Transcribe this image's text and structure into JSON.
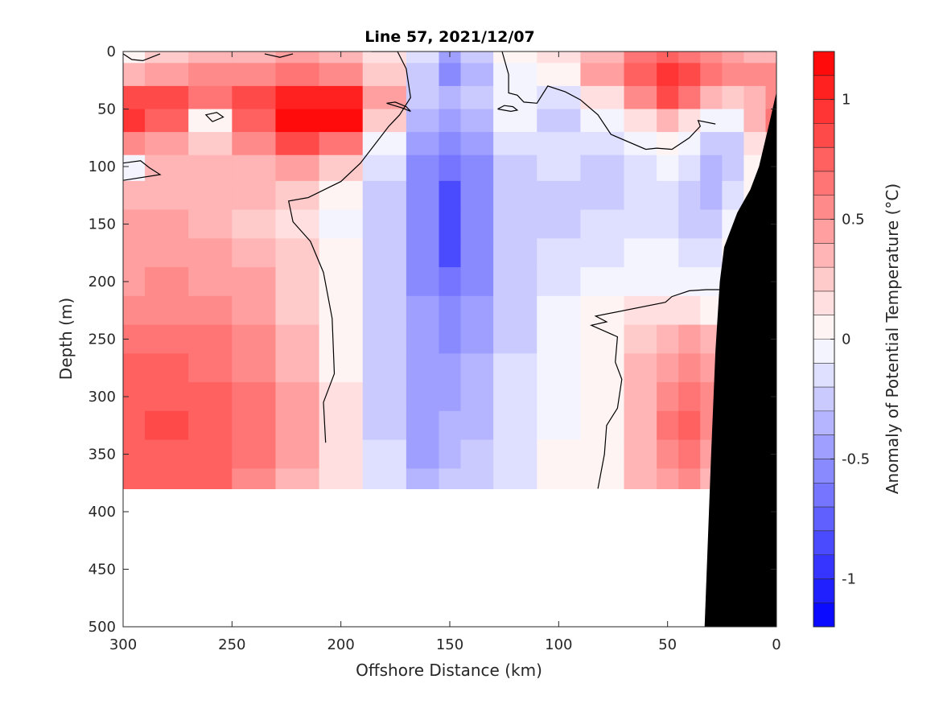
{
  "chart_data": {
    "type": "heatmap",
    "title": "Line 57, 2021/12/07",
    "xlabel": "Offshore Distance (km)",
    "ylabel": "Depth (m)",
    "colorbar_label": "Anomaly of Potential Temperature (°C)",
    "xlim": [
      300,
      0
    ],
    "x_reversed": true,
    "ylim": [
      0,
      500
    ],
    "y_reversed": true,
    "x_ticks": [
      300,
      250,
      200,
      150,
      100,
      50,
      0
    ],
    "y_ticks": [
      0,
      50,
      100,
      150,
      200,
      250,
      300,
      350,
      400,
      450,
      500
    ],
    "clim": [
      -1.2,
      1.2
    ],
    "color_levels": 24,
    "colorbar_ticks": [
      1,
      0.5,
      0,
      -0.5,
      -1
    ],
    "colorbar_tick_labels": [
      "1",
      "0.5",
      "0",
      "-0.5",
      "-1"
    ],
    "colors": {
      "positive": "#ff0000",
      "negative": "#0000ff",
      "neutral": "#ffffff",
      "bathymetry": "#000000",
      "contour": "#000000"
    },
    "grid": false,
    "data_bottom_depth": 380,
    "x_km": [
      300,
      280,
      260,
      240,
      220,
      200,
      180,
      160,
      150,
      140,
      120,
      100,
      80,
      60,
      50,
      40,
      30,
      20,
      10,
      0
    ],
    "depth_m": [
      0,
      20,
      40,
      60,
      80,
      100,
      125,
      150,
      175,
      200,
      225,
      250,
      275,
      300,
      325,
      350,
      375
    ],
    "anomaly_degC": [
      [
        0.0,
        0.2,
        0.3,
        0.3,
        0.4,
        0.3,
        0.1,
        -0.2,
        -0.5,
        -0.3,
        0.0,
        0.1,
        0.3,
        0.6,
        0.7,
        0.6,
        0.5,
        0.4,
        0.3,
        0.3
      ],
      [
        0.3,
        0.4,
        0.5,
        0.5,
        0.6,
        0.5,
        0.2,
        -0.3,
        -0.6,
        -0.4,
        -0.1,
        0.0,
        0.4,
        0.7,
        0.9,
        0.8,
        0.6,
        0.5,
        0.5,
        0.5
      ],
      [
        0.8,
        0.8,
        0.6,
        0.8,
        1.0,
        1.0,
        0.4,
        -0.3,
        -0.4,
        -0.3,
        -0.1,
        -0.2,
        0.1,
        0.5,
        0.8,
        0.6,
        0.3,
        0.2,
        0.3,
        0.5
      ],
      [
        0.9,
        0.7,
        0.0,
        0.7,
        1.2,
        1.1,
        0.2,
        -0.4,
        -0.5,
        -0.4,
        -0.1,
        -0.3,
        -0.1,
        0.1,
        0.3,
        0.1,
        -0.1,
        -0.1,
        0.3,
        0.6
      ],
      [
        0.5,
        0.4,
        0.2,
        0.5,
        0.8,
        0.6,
        -0.1,
        -0.5,
        -0.6,
        -0.5,
        -0.2,
        -0.2,
        -0.2,
        -0.1,
        0.0,
        -0.1,
        -0.3,
        -0.3,
        0.1,
        0.2
      ],
      [
        -0.1,
        0.3,
        0.3,
        0.3,
        0.4,
        0.2,
        -0.2,
        -0.6,
        -0.7,
        -0.6,
        -0.3,
        -0.2,
        -0.3,
        -0.2,
        -0.1,
        -0.2,
        -0.4,
        -0.3,
        0.0,
        0.0
      ],
      [
        0.3,
        0.3,
        0.3,
        0.3,
        0.2,
        0.0,
        -0.3,
        -0.6,
        -0.8,
        -0.6,
        -0.3,
        -0.3,
        -0.3,
        -0.2,
        -0.2,
        -0.3,
        -0.4,
        -0.2,
        0.0,
        0.0
      ],
      [
        0.4,
        0.4,
        0.3,
        0.2,
        0.1,
        -0.1,
        -0.3,
        -0.6,
        -0.8,
        -0.6,
        -0.3,
        -0.3,
        -0.2,
        -0.2,
        -0.2,
        -0.3,
        -0.3,
        -0.1,
        0.0,
        0.0
      ],
      [
        0.4,
        0.4,
        0.4,
        0.3,
        0.2,
        0.0,
        -0.3,
        -0.6,
        -0.8,
        -0.6,
        -0.3,
        -0.2,
        -0.2,
        -0.1,
        -0.1,
        -0.2,
        -0.2,
        0.0,
        0.0,
        0.0
      ],
      [
        0.4,
        0.5,
        0.4,
        0.4,
        0.2,
        0.0,
        -0.3,
        -0.6,
        -0.7,
        -0.6,
        -0.3,
        -0.2,
        -0.1,
        -0.1,
        -0.1,
        -0.1,
        -0.1,
        0.0,
        0.0,
        0.0
      ],
      [
        0.5,
        0.5,
        0.5,
        0.4,
        0.2,
        0.0,
        -0.3,
        -0.5,
        -0.6,
        -0.5,
        -0.3,
        -0.1,
        0.0,
        0.1,
        0.1,
        0.1,
        0.0,
        0.0,
        0.0,
        0.0
      ],
      [
        0.6,
        0.6,
        0.6,
        0.5,
        0.3,
        0.0,
        -0.3,
        -0.5,
        -0.6,
        -0.5,
        -0.3,
        -0.1,
        0.0,
        0.2,
        0.3,
        0.4,
        0.3,
        0.0,
        0.0,
        0.0
      ],
      [
        0.7,
        0.7,
        0.6,
        0.5,
        0.3,
        0.0,
        -0.3,
        -0.5,
        -0.5,
        -0.4,
        -0.2,
        -0.1,
        0.0,
        0.3,
        0.4,
        0.5,
        0.4,
        0.0,
        0.0,
        0.0
      ],
      [
        0.7,
        0.7,
        0.7,
        0.6,
        0.4,
        0.1,
        -0.3,
        -0.5,
        -0.5,
        -0.4,
        -0.2,
        -0.1,
        0.0,
        0.3,
        0.5,
        0.6,
        0.5,
        0.0,
        0.0,
        0.0
      ],
      [
        0.7,
        0.8,
        0.7,
        0.6,
        0.4,
        0.1,
        -0.3,
        -0.5,
        -0.4,
        -0.4,
        -0.2,
        -0.1,
        0.0,
        0.3,
        0.6,
        0.7,
        0.5,
        0.0,
        0.0,
        0.0
      ],
      [
        0.7,
        0.7,
        0.7,
        0.6,
        0.4,
        0.1,
        -0.2,
        -0.5,
        -0.4,
        -0.3,
        -0.2,
        0.0,
        0.0,
        0.3,
        0.5,
        0.6,
        0.4,
        0.0,
        0.0,
        0.0
      ],
      [
        0.7,
        0.7,
        0.7,
        0.5,
        0.3,
        0.1,
        -0.2,
        -0.4,
        -0.3,
        -0.3,
        -0.2,
        0.0,
        0.0,
        0.3,
        0.4,
        0.5,
        0.3,
        0.0,
        0.0,
        0.0
      ]
    ],
    "bathymetry_profile": {
      "x_km": [
        0,
        3,
        8,
        12,
        18,
        20,
        24,
        26,
        28,
        30,
        33,
        0
      ],
      "depth_m": [
        35,
        60,
        100,
        120,
        140,
        150,
        170,
        200,
        260,
        350,
        500,
        500
      ]
    },
    "zero_contours": [
      {
        "x_km": [
          300,
          292,
          288,
          283,
          300
        ],
        "depth_m": [
          97,
          95,
          101,
          107,
          112
        ]
      },
      {
        "x_km": [
          259,
          262,
          257,
          254,
          259
        ],
        "depth_m": [
          61,
          55,
          53,
          57,
          61
        ]
      },
      {
        "x_km": [
          179,
          172,
          168,
          170,
          175,
          179
        ],
        "depth_m": [
          45,
          49,
          52,
          48,
          44,
          45
        ]
      },
      {
        "x_km": [
          128,
          125,
          121,
          119,
          122,
          128
        ],
        "depth_m": [
          50,
          47,
          48,
          51,
          52,
          50
        ]
      },
      {
        "x_km": [
          300,
          296,
          291,
          283
        ],
        "depth_m": [
          2,
          7,
          8,
          2
        ]
      },
      {
        "x_km": [
          235,
          228,
          222
        ],
        "depth_m": [
          2,
          5,
          2
        ]
      },
      {
        "x_km": [
          186,
          174,
          170,
          168,
          173,
          178,
          191,
          200,
          215,
          224,
          222,
          214,
          208,
          204,
          203,
          208,
          207
        ],
        "depth_m": [
          0,
          0,
          15,
          40,
          55,
          65,
          97,
          113,
          127,
          130,
          148,
          165,
          192,
          232,
          280,
          305,
          340
        ]
      },
      {
        "x_km": [
          126,
          123,
          123,
          119,
          116,
          110,
          105,
          97,
          90,
          82,
          76,
          60,
          55,
          48,
          40,
          35,
          36,
          28
        ],
        "depth_m": [
          0,
          20,
          36,
          38,
          44,
          45,
          30,
          35,
          42,
          55,
          72,
          85,
          84,
          85,
          75,
          65,
          60,
          63
        ]
      },
      {
        "x_km": [
          82,
          79,
          78,
          73,
          71,
          74,
          73,
          85,
          78,
          83,
          51,
          48,
          40,
          32,
          26
        ],
        "depth_m": [
          380,
          350,
          325,
          310,
          285,
          270,
          248,
          238,
          235,
          230,
          218,
          213,
          208,
          207,
          207
        ]
      }
    ]
  }
}
